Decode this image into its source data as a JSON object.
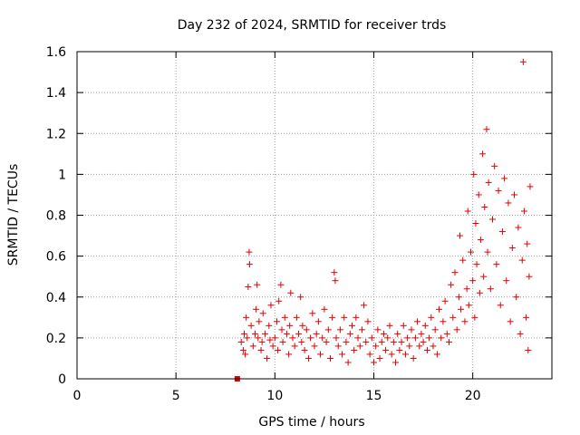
{
  "chart_data": {
    "type": "scatter",
    "title": "Day 232 of 2024, SRMTID for receiver trds",
    "xlabel": "GPS time / hours",
    "ylabel": "SRMTID / TECUs",
    "xlim": [
      0,
      24
    ],
    "ylim": [
      0,
      1.6
    ],
    "xticks": [
      0,
      5,
      10,
      15,
      20
    ],
    "yticks": [
      0,
      0.2,
      0.4,
      0.6,
      0.8,
      1,
      1.2,
      1.4,
      1.6
    ],
    "xtick_labels": [
      "0",
      "5",
      "10",
      "15",
      "20"
    ],
    "ytick_labels": [
      "0",
      "0.2",
      "0.4",
      "0.6",
      "0.8",
      "1",
      "1.2",
      "1.4",
      "1.6"
    ],
    "grid": true,
    "marker": "+",
    "color": "#e00000",
    "series": [
      {
        "name": "SRMTID",
        "outlier_square": {
          "x": 8.1,
          "y": 0.0
        },
        "points": [
          [
            8.3,
            0.18
          ],
          [
            8.4,
            0.14
          ],
          [
            8.45,
            0.22
          ],
          [
            8.5,
            0.12
          ],
          [
            8.55,
            0.3
          ],
          [
            8.6,
            0.2
          ],
          [
            8.65,
            0.45
          ],
          [
            8.7,
            0.62
          ],
          [
            8.72,
            0.56
          ],
          [
            8.8,
            0.26
          ],
          [
            8.9,
            0.16
          ],
          [
            9.0,
            0.22
          ],
          [
            9.05,
            0.34
          ],
          [
            9.1,
            0.46
          ],
          [
            9.15,
            0.2
          ],
          [
            9.2,
            0.28
          ],
          [
            9.3,
            0.14
          ],
          [
            9.35,
            0.18
          ],
          [
            9.4,
            0.32
          ],
          [
            9.5,
            0.22
          ],
          [
            9.6,
            0.1
          ],
          [
            9.7,
            0.26
          ],
          [
            9.75,
            0.19
          ],
          [
            9.8,
            0.36
          ],
          [
            9.9,
            0.16
          ],
          [
            10.0,
            0.2
          ],
          [
            10.1,
            0.28
          ],
          [
            10.15,
            0.14
          ],
          [
            10.2,
            0.38
          ],
          [
            10.3,
            0.46
          ],
          [
            10.35,
            0.24
          ],
          [
            10.4,
            0.18
          ],
          [
            10.5,
            0.3
          ],
          [
            10.6,
            0.22
          ],
          [
            10.7,
            0.12
          ],
          [
            10.75,
            0.26
          ],
          [
            10.8,
            0.42
          ],
          [
            10.9,
            0.2
          ],
          [
            11.0,
            0.16
          ],
          [
            11.1,
            0.3
          ],
          [
            11.2,
            0.22
          ],
          [
            11.3,
            0.4
          ],
          [
            11.35,
            0.18
          ],
          [
            11.4,
            0.26
          ],
          [
            11.5,
            0.14
          ],
          [
            11.6,
            0.24
          ],
          [
            11.7,
            0.1
          ],
          [
            11.8,
            0.2
          ],
          [
            11.9,
            0.32
          ],
          [
            12.0,
            0.16
          ],
          [
            12.1,
            0.22
          ],
          [
            12.2,
            0.28
          ],
          [
            12.3,
            0.12
          ],
          [
            12.4,
            0.2
          ],
          [
            12.5,
            0.34
          ],
          [
            12.6,
            0.18
          ],
          [
            12.7,
            0.24
          ],
          [
            12.8,
            0.1
          ],
          [
            12.9,
            0.3
          ],
          [
            13.0,
            0.52
          ],
          [
            13.05,
            0.48
          ],
          [
            13.1,
            0.2
          ],
          [
            13.2,
            0.16
          ],
          [
            13.3,
            0.24
          ],
          [
            13.4,
            0.12
          ],
          [
            13.5,
            0.3
          ],
          [
            13.6,
            0.18
          ],
          [
            13.7,
            0.08
          ],
          [
            13.8,
            0.22
          ],
          [
            13.9,
            0.26
          ],
          [
            14.0,
            0.14
          ],
          [
            14.1,
            0.3
          ],
          [
            14.2,
            0.2
          ],
          [
            14.3,
            0.16
          ],
          [
            14.4,
            0.24
          ],
          [
            14.5,
            0.36
          ],
          [
            14.6,
            0.18
          ],
          [
            14.7,
            0.28
          ],
          [
            14.8,
            0.12
          ],
          [
            14.9,
            0.2
          ],
          [
            15.0,
            0.08
          ],
          [
            15.1,
            0.16
          ],
          [
            15.2,
            0.24
          ],
          [
            15.3,
            0.1
          ],
          [
            15.4,
            0.18
          ],
          [
            15.5,
            0.22
          ],
          [
            15.6,
            0.14
          ],
          [
            15.7,
            0.2
          ],
          [
            15.8,
            0.26
          ],
          [
            15.9,
            0.12
          ],
          [
            16.0,
            0.18
          ],
          [
            16.1,
            0.08
          ],
          [
            16.2,
            0.22
          ],
          [
            16.3,
            0.14
          ],
          [
            16.4,
            0.18
          ],
          [
            16.5,
            0.26
          ],
          [
            16.6,
            0.12
          ],
          [
            16.7,
            0.2
          ],
          [
            16.8,
            0.16
          ],
          [
            16.9,
            0.24
          ],
          [
            17.0,
            0.1
          ],
          [
            17.1,
            0.2
          ],
          [
            17.2,
            0.28
          ],
          [
            17.3,
            0.16
          ],
          [
            17.4,
            0.22
          ],
          [
            17.5,
            0.18
          ],
          [
            17.6,
            0.26
          ],
          [
            17.7,
            0.14
          ],
          [
            17.8,
            0.2
          ],
          [
            17.9,
            0.3
          ],
          [
            18.0,
            0.16
          ],
          [
            18.1,
            0.24
          ],
          [
            18.2,
            0.12
          ],
          [
            18.3,
            0.34
          ],
          [
            18.4,
            0.2
          ],
          [
            18.5,
            0.28
          ],
          [
            18.6,
            0.38
          ],
          [
            18.7,
            0.22
          ],
          [
            18.8,
            0.18
          ],
          [
            18.9,
            0.46
          ],
          [
            19.0,
            0.3
          ],
          [
            19.1,
            0.52
          ],
          [
            19.2,
            0.24
          ],
          [
            19.3,
            0.4
          ],
          [
            19.35,
            0.7
          ],
          [
            19.4,
            0.34
          ],
          [
            19.5,
            0.58
          ],
          [
            19.6,
            0.28
          ],
          [
            19.7,
            0.44
          ],
          [
            19.75,
            0.82
          ],
          [
            19.8,
            0.36
          ],
          [
            19.9,
            0.62
          ],
          [
            20.0,
            0.48
          ],
          [
            20.05,
            1.0
          ],
          [
            20.1,
            0.3
          ],
          [
            20.15,
            0.76
          ],
          [
            20.2,
            0.56
          ],
          [
            20.3,
            0.9
          ],
          [
            20.35,
            0.42
          ],
          [
            20.4,
            0.68
          ],
          [
            20.5,
            1.1
          ],
          [
            20.55,
            0.5
          ],
          [
            20.6,
            0.84
          ],
          [
            20.7,
            1.22
          ],
          [
            20.75,
            0.62
          ],
          [
            20.8,
            0.96
          ],
          [
            20.9,
            0.44
          ],
          [
            21.0,
            0.78
          ],
          [
            21.1,
            1.04
          ],
          [
            21.2,
            0.56
          ],
          [
            21.3,
            0.92
          ],
          [
            21.4,
            0.36
          ],
          [
            21.5,
            0.72
          ],
          [
            21.6,
            0.98
          ],
          [
            21.7,
            0.48
          ],
          [
            21.8,
            0.86
          ],
          [
            21.9,
            0.28
          ],
          [
            22.0,
            0.64
          ],
          [
            22.1,
            0.9
          ],
          [
            22.2,
            0.4
          ],
          [
            22.3,
            0.74
          ],
          [
            22.4,
            0.22
          ],
          [
            22.5,
            0.58
          ],
          [
            22.55,
            1.55
          ],
          [
            22.6,
            0.82
          ],
          [
            22.7,
            0.3
          ],
          [
            22.75,
            0.66
          ],
          [
            22.8,
            0.14
          ],
          [
            22.85,
            0.5
          ],
          [
            22.9,
            0.94
          ]
        ]
      }
    ]
  }
}
